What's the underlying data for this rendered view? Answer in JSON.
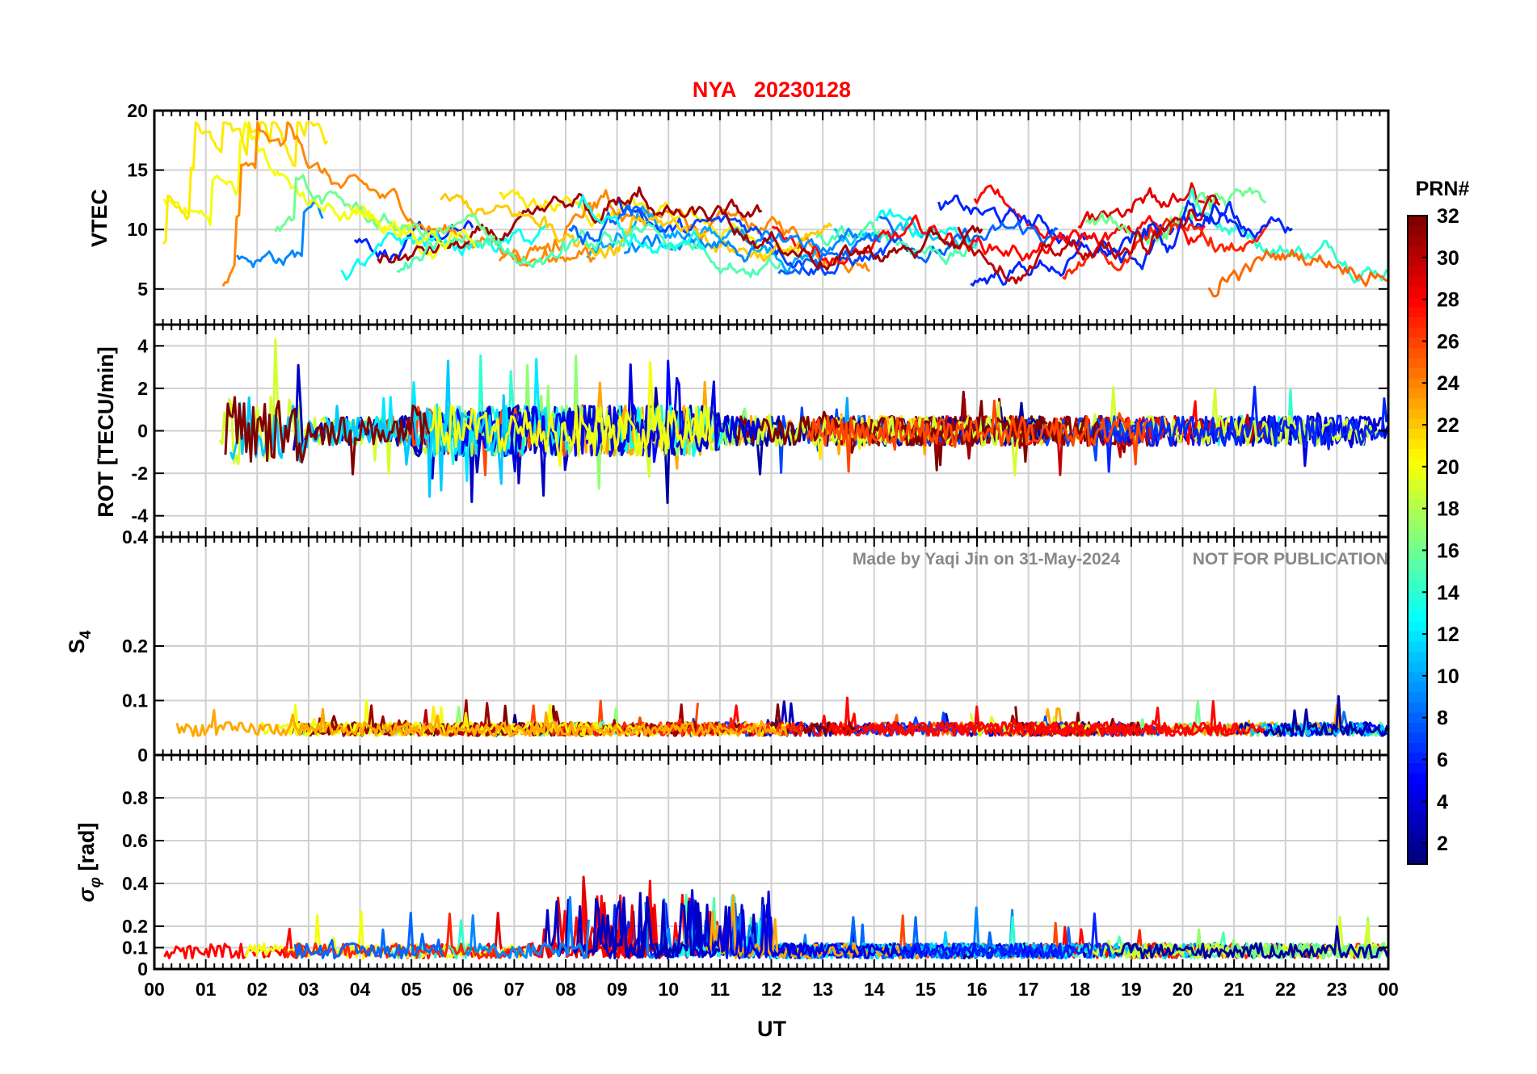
{
  "chart_data": {
    "type": "line",
    "title": "NYA   20230128",
    "xlabel": "UT",
    "x_ticks": [
      "00",
      "01",
      "02",
      "03",
      "04",
      "05",
      "06",
      "07",
      "08",
      "09",
      "10",
      "11",
      "12",
      "13",
      "14",
      "15",
      "16",
      "17",
      "18",
      "19",
      "20",
      "21",
      "22",
      "23",
      "00"
    ],
    "xlim": [
      0,
      24
    ],
    "watermark": {
      "made_by": "Made by Yaqi Jin on 31-May-2024",
      "notice": "NOT FOR PUBLICATION"
    },
    "colorbar": {
      "title": "PRN#",
      "colormap": "jet",
      "range": [
        1,
        32
      ],
      "ticks": [
        "2",
        "4",
        "6",
        "8",
        "10",
        "12",
        "14",
        "16",
        "18",
        "20",
        "22",
        "24",
        "26",
        "28",
        "30",
        "32"
      ]
    },
    "panels": [
      {
        "id": "vtec",
        "ylabel": "VTEC",
        "ylim": [
          2,
          20
        ],
        "yticks": [
          5,
          10,
          15,
          20
        ],
        "ytick_labels": [
          "5",
          "10",
          "15",
          "20"
        ],
        "grid": true
      },
      {
        "id": "rot",
        "ylabel": "ROT [TECU/min]",
        "ylim": [
          -5,
          5
        ],
        "yticks": [
          -4,
          -2,
          0,
          2,
          4
        ],
        "ytick_labels": [
          "-4",
          "-2",
          "0",
          "2",
          "4"
        ],
        "grid": true
      },
      {
        "id": "s4",
        "ylabel": "S4",
        "ylim": [
          0,
          0.4
        ],
        "yticks": [
          0,
          0.1,
          0.2,
          0.4
        ],
        "ytick_labels": [
          "0",
          "0.1",
          "0.2",
          "0.4"
        ],
        "grid": true
      },
      {
        "id": "sigma_phi",
        "ylabel": "σφ [rad]",
        "ylim": [
          0,
          1
        ],
        "yticks": [
          0,
          0.1,
          0.2,
          0.4,
          0.6,
          0.8
        ],
        "ytick_labels": [
          "0",
          "0.1",
          "0.2",
          "0.4",
          "0.6",
          "0.8"
        ],
        "grid": true
      }
    ],
    "panel_labels": {
      "vtec": "VTEC",
      "rot": "ROT [TECU/min]",
      "s4_main": "S",
      "s4_sub": "4",
      "sigma_main": "σ",
      "sigma_sub": "φ",
      "sigma_unit": "[rad]"
    }
  }
}
